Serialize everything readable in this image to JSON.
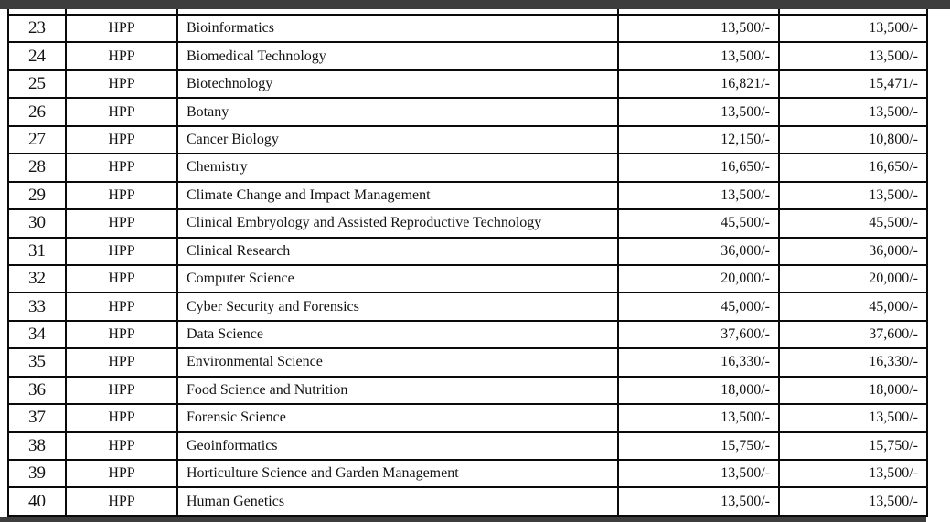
{
  "page": {
    "background_color": "#ffffff",
    "viewer_bar_color": "#3d3d3d",
    "border_color": "#0a0a0a"
  },
  "table": {
    "rows": [
      {
        "no": "23",
        "code": "HPP",
        "course": "Bioinformatics",
        "fee1": "13,500/-",
        "fee2": "13,500/-"
      },
      {
        "no": "24",
        "code": "HPP",
        "course": "Biomedical Technology",
        "fee1": "13,500/-",
        "fee2": "13,500/-"
      },
      {
        "no": "25",
        "code": "HPP",
        "course": "Biotechnology",
        "fee1": "16,821/-",
        "fee2": "15,471/-"
      },
      {
        "no": "26",
        "code": "HPP",
        "course": "Botany",
        "fee1": "13,500/-",
        "fee2": "13,500/-"
      },
      {
        "no": "27",
        "code": "HPP",
        "course": "Cancer Biology",
        "fee1": "12,150/-",
        "fee2": "10,800/-"
      },
      {
        "no": "28",
        "code": "HPP",
        "course": "Chemistry",
        "fee1": "16,650/-",
        "fee2": "16,650/-"
      },
      {
        "no": "29",
        "code": "HPP",
        "course": "Climate Change and Impact Management",
        "fee1": "13,500/-",
        "fee2": "13,500/-"
      },
      {
        "no": "30",
        "code": "HPP",
        "course": "Clinical Embryology and Assisted Reproductive Technology",
        "fee1": "45,500/-",
        "fee2": "45,500/-"
      },
      {
        "no": "31",
        "code": "HPP",
        "course": "Clinical Research",
        "fee1": "36,000/-",
        "fee2": "36,000/-"
      },
      {
        "no": "32",
        "code": "HPP",
        "course": "Computer Science",
        "fee1": "20,000/-",
        "fee2": "20,000/-"
      },
      {
        "no": "33",
        "code": "HPP",
        "course": "Cyber Security and Forensics",
        "fee1": "45,000/-",
        "fee2": "45,000/-"
      },
      {
        "no": "34",
        "code": "HPP",
        "course": "Data Science",
        "fee1": "37,600/-",
        "fee2": "37,600/-"
      },
      {
        "no": "35",
        "code": "HPP",
        "course": "Environmental Science",
        "fee1": "16,330/-",
        "fee2": "16,330/-"
      },
      {
        "no": "36",
        "code": "HPP",
        "course": "Food Science and Nutrition",
        "fee1": "18,000/-",
        "fee2": "18,000/-"
      },
      {
        "no": "37",
        "code": "HPP",
        "course": "Forensic Science",
        "fee1": "13,500/-",
        "fee2": "13,500/-"
      },
      {
        "no": "38",
        "code": "HPP",
        "course": "Geoinformatics",
        "fee1": "15,750/-",
        "fee2": "15,750/-"
      },
      {
        "no": "39",
        "code": "HPP",
        "course": "Horticulture Science and Garden Management",
        "fee1": "13,500/-",
        "fee2": "13,500/-"
      },
      {
        "no": "40",
        "code": "HPP",
        "course": "Human Genetics",
        "fee1": "13,500/-",
        "fee2": "13,500/-"
      }
    ]
  }
}
